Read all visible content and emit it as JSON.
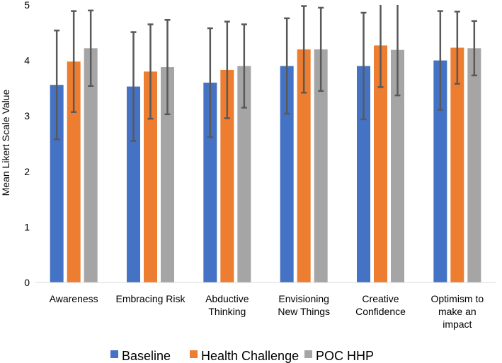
{
  "chart_data": {
    "type": "bar",
    "title": "",
    "xlabel": "",
    "ylabel": "Mean Likert Scale Value",
    "ylim": [
      0,
      5
    ],
    "yticks": [
      "0",
      "1",
      "2",
      "3",
      "4",
      "5"
    ],
    "grid": false,
    "legend_position": "bottom",
    "categories": [
      [
        "Awareness"
      ],
      [
        "Embracing Risk"
      ],
      [
        "Abductive",
        "Thinking"
      ],
      [
        "Envisioning",
        "New Things"
      ],
      [
        "Creative",
        "Confidence"
      ],
      [
        "Optimism to",
        "make an",
        "impact"
      ]
    ],
    "series": [
      {
        "name": "Baseline",
        "color": "#4472C4",
        "values": [
          3.56,
          3.53,
          3.6,
          3.9,
          3.9,
          4.0
        ],
        "error": [
          0.98,
          0.98,
          0.98,
          0.86,
          0.96,
          0.89
        ]
      },
      {
        "name": "Health Challenge",
        "color": "#ED7D31",
        "values": [
          3.98,
          3.8,
          3.83,
          4.2,
          4.27,
          4.23
        ],
        "error": [
          0.91,
          0.85,
          0.87,
          0.78,
          0.75,
          0.65
        ]
      },
      {
        "name": "POC HHP",
        "color": "#A5A5A5",
        "values": [
          4.22,
          3.88,
          3.9,
          4.2,
          4.19,
          4.22
        ],
        "error": [
          0.68,
          0.85,
          0.75,
          0.75,
          0.82,
          0.49
        ]
      }
    ],
    "error_bar_color": "#595959"
  }
}
